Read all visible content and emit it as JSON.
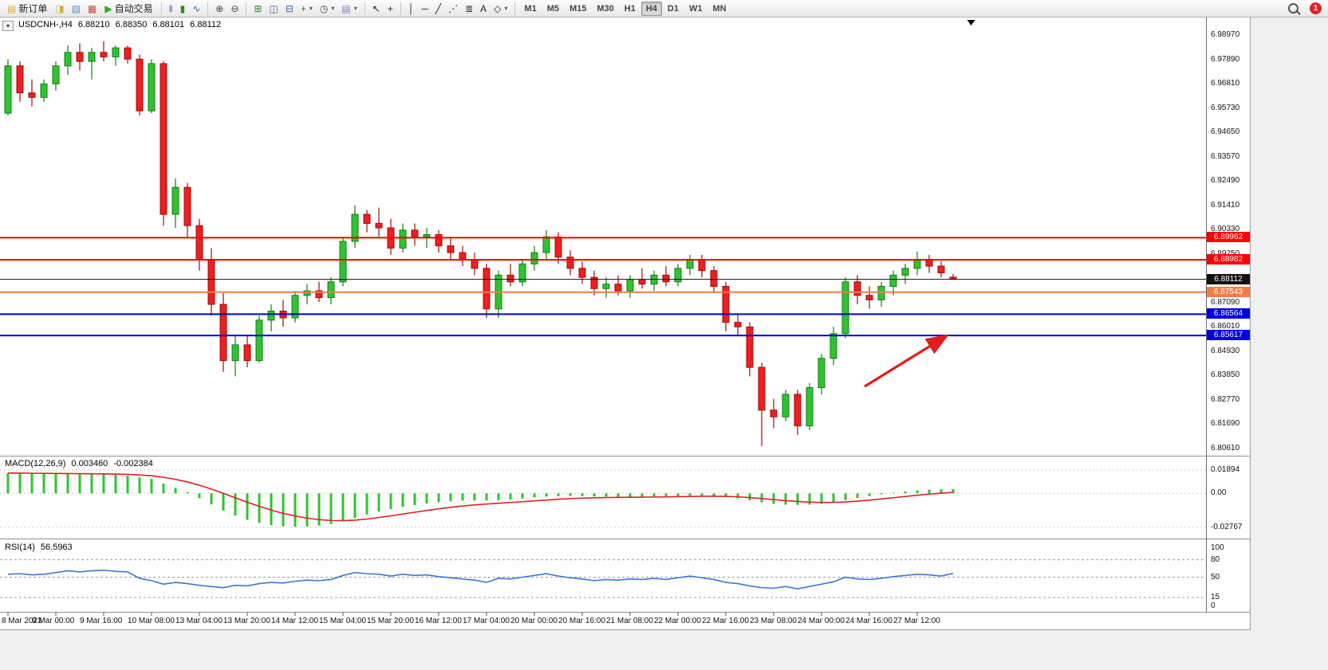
{
  "toolbar": {
    "timeframes": [
      "M1",
      "M5",
      "M15",
      "M30",
      "H1",
      "H4",
      "D1",
      "W1",
      "MN"
    ],
    "active_timeframe": "H4",
    "notification_count": "1",
    "sections": [
      {
        "type": "button",
        "name": "new-order-button",
        "icon_name": "new-order-icon",
        "glyph": "▤",
        "glyph_color": "#d8aa3c",
        "label": "新订单"
      },
      {
        "type": "icons",
        "items": [
          {
            "name": "charts-icon",
            "glyph": "◨",
            "color": "#d8aa3c"
          },
          {
            "name": "profiles-icon",
            "glyph": "▧",
            "color": "#5d8fc6"
          },
          {
            "name": "market-watch-icon",
            "glyph": "▦",
            "color": "#c05050"
          }
        ]
      },
      {
        "type": "button",
        "name": "auto-trading-button",
        "icon_name": "auto-trading-icon",
        "glyph": "▶",
        "glyph_color": "#28a828",
        "label": "自动交易"
      },
      {
        "type": "sep"
      },
      {
        "type": "icons",
        "items": [
          {
            "name": "bar-chart-icon",
            "glyph": "‖",
            "color": "#44659c"
          },
          {
            "name": "candlestick-chart-icon",
            "glyph": "▮",
            "color": "#2f8a2f"
          },
          {
            "name": "line-chart-icon",
            "glyph": "∿",
            "color": "#44659c"
          }
        ]
      },
      {
        "type": "sep"
      },
      {
        "type": "icons",
        "items": [
          {
            "name": "zoom-in-icon",
            "glyph": "⊕",
            "color": "#444444"
          },
          {
            "name": "zoom-out-icon",
            "glyph": "⊖",
            "color": "#444444"
          }
        ]
      },
      {
        "type": "sep"
      },
      {
        "type": "icons",
        "items": [
          {
            "name": "tile-windows-icon",
            "glyph": "⊞",
            "color": "#2f8a2f"
          },
          {
            "name": "arrange-windows-icon",
            "glyph": "◫",
            "color": "#44659c"
          },
          {
            "name": "cascade-windows-icon",
            "glyph": "⊟",
            "color": "#44659c"
          },
          {
            "name": "add-indicator-icon",
            "glyph": "+",
            "color": "#2f8a2f",
            "caret": true
          },
          {
            "name": "period-icon",
            "glyph": "◷",
            "color": "#444444",
            "caret": true
          },
          {
            "name": "template-icon",
            "glyph": "▤",
            "color": "#8a7ab0",
            "caret": true
          }
        ]
      },
      {
        "type": "sep"
      },
      {
        "type": "icons",
        "items": [
          {
            "name": "cursor-icon",
            "glyph": "↖",
            "color": "#222222"
          },
          {
            "name": "crosshair-icon",
            "glyph": "+",
            "color": "#222222"
          }
        ]
      },
      {
        "type": "sep"
      },
      {
        "type": "icons",
        "items": [
          {
            "name": "vertical-line-icon",
            "glyph": "│",
            "color": "#222222"
          },
          {
            "name": "horizontal-line-icon",
            "glyph": "─",
            "color": "#222222"
          },
          {
            "name": "trendline-icon",
            "glyph": "╱",
            "color": "#222222"
          },
          {
            "name": "equidistant-channel-icon",
            "glyph": "⋰",
            "color": "#222222"
          },
          {
            "name": "fibonacci-icon",
            "glyph": "≣",
            "color": "#222222"
          },
          {
            "name": "text-label-icon",
            "glyph": "A",
            "color": "#222222"
          },
          {
            "name": "arrows-shapes-icon",
            "glyph": "◇",
            "color": "#222222",
            "caret": true
          }
        ]
      },
      {
        "type": "sep"
      },
      {
        "type": "timeframes"
      },
      {
        "type": "spacer"
      },
      {
        "type": "search"
      },
      {
        "type": "badge"
      }
    ]
  },
  "header": {
    "symbol_period": "USDCNH-,H4",
    "open": "6.88210",
    "high": "6.88350",
    "low": "6.88101",
    "close": "6.88112"
  },
  "indicators_text": {
    "macd_label": "MACD(12,26,9)",
    "macd_value1": "0.003460",
    "macd_value2": "-0.002384",
    "rsi_label": "RSI(14)",
    "rsi_value": "56.5963"
  },
  "one_click_glyph": "▾",
  "chart_data": {
    "type": "candlestick",
    "symbol": "USDCNH-",
    "timeframe": "H4",
    "ohlc_current": {
      "open": 6.8821,
      "high": 6.8835,
      "low": 6.88101,
      "close": 6.88112
    },
    "ylim": [
      6.8061,
      6.9897
    ],
    "y_ticks": [
      "6.98970",
      "6.97890",
      "6.96810",
      "6.95730",
      "6.94650",
      "6.93570",
      "6.92490",
      "6.91410",
      "6.90330",
      "6.89250",
      "6.88170",
      "6.87090",
      "6.86010",
      "6.84930",
      "6.83850",
      "6.82770",
      "6.81690",
      "6.80610"
    ],
    "x_labels": [
      "8 Mar 2023",
      "9 Mar 00:00",
      "9 Mar 16:00",
      "10 Mar 08:00",
      "13 Mar 04:00",
      "13 Mar 20:00",
      "14 Mar 12:00",
      "15 Mar 04:00",
      "15 Mar 20:00",
      "16 Mar 12:00",
      "17 Mar 04:00",
      "20 Mar 00:00",
      "20 Mar 16:00",
      "21 Mar 08:00",
      "22 Mar 00:00",
      "22 Mar 16:00",
      "23 Mar 08:00",
      "24 Mar 00:00",
      "24 Mar 16:00",
      "27 Mar 12:00"
    ],
    "x_label_step": 4,
    "candles": [
      [
        6.955,
        6.979,
        6.954,
        6.976
      ],
      [
        6.976,
        6.978,
        6.96,
        6.964
      ],
      [
        6.964,
        6.97,
        6.958,
        6.962
      ],
      [
        6.962,
        6.97,
        6.96,
        6.968
      ],
      [
        6.968,
        6.978,
        6.965,
        6.976
      ],
      [
        6.976,
        6.985,
        6.972,
        6.982
      ],
      [
        6.982,
        6.986,
        6.974,
        6.978
      ],
      [
        6.978,
        6.984,
        6.97,
        6.982
      ],
      [
        6.982,
        6.987,
        6.978,
        6.98
      ],
      [
        6.98,
        6.985,
        6.976,
        6.984
      ],
      [
        6.984,
        6.985,
        6.977,
        6.979
      ],
      [
        6.979,
        6.981,
        6.954,
        6.956
      ],
      [
        6.956,
        6.979,
        6.955,
        6.977
      ],
      [
        6.977,
        6.978,
        6.905,
        6.91
      ],
      [
        6.91,
        6.926,
        6.904,
        6.922
      ],
      [
        6.922,
        6.924,
        6.9,
        6.905
      ],
      [
        6.905,
        6.908,
        6.885,
        6.89
      ],
      [
        6.89,
        6.895,
        6.865,
        6.87
      ],
      [
        6.87,
        6.875,
        6.84,
        6.845
      ],
      [
        6.845,
        6.856,
        6.838,
        6.852
      ],
      [
        6.852,
        6.856,
        6.842,
        6.845
      ],
      [
        6.845,
        6.865,
        6.844,
        6.863
      ],
      [
        6.863,
        6.87,
        6.858,
        6.867
      ],
      [
        6.867,
        6.872,
        6.86,
        6.864
      ],
      [
        6.864,
        6.876,
        6.862,
        6.874
      ],
      [
        6.874,
        6.879,
        6.87,
        6.876
      ],
      [
        6.876,
        6.88,
        6.871,
        6.873
      ],
      [
        6.873,
        6.882,
        6.87,
        6.88
      ],
      [
        6.88,
        6.9,
        6.878,
        6.898
      ],
      [
        6.898,
        6.914,
        6.895,
        6.91
      ],
      [
        6.91,
        6.912,
        6.902,
        6.906
      ],
      [
        6.906,
        6.913,
        6.9,
        6.904
      ],
      [
        6.904,
        6.908,
        6.892,
        6.895
      ],
      [
        6.895,
        6.906,
        6.893,
        6.903
      ],
      [
        6.903,
        6.906,
        6.896,
        6.9
      ],
      [
        6.9,
        6.904,
        6.895,
        6.901
      ],
      [
        6.901,
        6.903,
        6.893,
        6.896
      ],
      [
        6.896,
        6.9,
        6.89,
        6.893
      ],
      [
        6.893,
        6.896,
        6.887,
        6.89
      ],
      [
        6.89,
        6.893,
        6.883,
        6.886
      ],
      [
        6.886,
        6.888,
        6.864,
        6.868
      ],
      [
        6.868,
        6.885,
        6.864,
        6.883
      ],
      [
        6.883,
        6.888,
        6.878,
        6.88
      ],
      [
        6.88,
        6.89,
        6.878,
        6.888
      ],
      [
        6.888,
        6.896,
        6.885,
        6.893
      ],
      [
        6.893,
        6.903,
        6.89,
        6.9
      ],
      [
        6.9,
        6.902,
        6.888,
        6.891
      ],
      [
        6.891,
        6.894,
        6.883,
        6.886
      ],
      [
        6.886,
        6.889,
        6.879,
        6.882
      ],
      [
        6.882,
        6.885,
        6.874,
        6.877
      ],
      [
        6.877,
        6.882,
        6.873,
        6.879
      ],
      [
        6.879,
        6.883,
        6.874,
        6.876
      ],
      [
        6.876,
        6.883,
        6.873,
        6.881
      ],
      [
        6.881,
        6.886,
        6.877,
        6.879
      ],
      [
        6.879,
        6.885,
        6.876,
        6.883
      ],
      [
        6.883,
        6.887,
        6.878,
        6.88
      ],
      [
        6.88,
        6.888,
        6.878,
        6.886
      ],
      [
        6.886,
        6.892,
        6.883,
        6.89
      ],
      [
        6.89,
        6.892,
        6.882,
        6.885
      ],
      [
        6.885,
        6.887,
        6.875,
        6.878
      ],
      [
        6.878,
        6.88,
        6.858,
        6.862
      ],
      [
        6.862,
        6.866,
        6.856,
        6.86
      ],
      [
        6.86,
        6.862,
        6.838,
        6.842
      ],
      [
        6.842,
        6.844,
        6.807,
        6.823
      ],
      [
        6.823,
        6.828,
        6.815,
        6.82
      ],
      [
        6.82,
        6.832,
        6.818,
        6.83
      ],
      [
        6.83,
        6.832,
        6.812,
        6.816
      ],
      [
        6.816,
        6.835,
        6.814,
        6.833
      ],
      [
        6.833,
        6.848,
        6.83,
        6.846
      ],
      [
        6.846,
        6.86,
        6.843,
        6.857
      ],
      [
        6.857,
        6.882,
        6.855,
        6.88
      ],
      [
        6.88,
        6.883,
        6.87,
        6.874
      ],
      [
        6.874,
        6.878,
        6.868,
        6.872
      ],
      [
        6.872,
        6.88,
        6.869,
        6.878
      ],
      [
        6.878,
        6.885,
        6.874,
        6.883
      ],
      [
        6.883,
        6.888,
        6.879,
        6.886
      ],
      [
        6.886,
        6.8935,
        6.883,
        6.89
      ],
      [
        6.89,
        6.892,
        6.884,
        6.887
      ],
      [
        6.887,
        6.889,
        6.882,
        6.884
      ],
      [
        6.8821,
        6.8835,
        6.881,
        6.88112
      ]
    ],
    "horizontal_lines": [
      {
        "price": 6.89962,
        "label": "6.89962",
        "color": "#ff0000",
        "width": 2
      },
      {
        "price": 6.88982,
        "label": "6.88982",
        "color": "#ff0000",
        "width": 2
      },
      {
        "price": 6.88112,
        "label": "6.88112",
        "color": "#111111",
        "width": 1
      },
      {
        "price": 6.87543,
        "label": "6.87543",
        "color": "#ef7d45",
        "width": 2
      },
      {
        "price": 6.86564,
        "label": "6.86564",
        "color": "#0000e0",
        "width": 2
      },
      {
        "price": 6.85617,
        "label": "6.85617",
        "color": "#0000e0",
        "width": 2
      }
    ],
    "indicators": [
      {
        "type": "bar",
        "name": "MACD(12,26,9)",
        "display_values": "0.003460 -0.002384",
        "bar_color": "#2fc42f",
        "line_color": "#e02020",
        "y_ticks": [
          "0.01894",
          "0.00",
          "-0.02767"
        ],
        "values": [
          0.0165,
          0.0162,
          0.016,
          0.0158,
          0.0157,
          0.0158,
          0.0157,
          0.0156,
          0.0154,
          0.015,
          0.0144,
          0.013,
          0.0118,
          0.008,
          0.0045,
          0.001,
          -0.004,
          -0.009,
          -0.014,
          -0.018,
          -0.0215,
          -0.024,
          -0.0258,
          -0.0268,
          -0.0272,
          -0.027,
          -0.0262,
          -0.025,
          -0.0228,
          -0.02,
          -0.0172,
          -0.0148,
          -0.0128,
          -0.011,
          -0.0095,
          -0.0082,
          -0.0072,
          -0.0065,
          -0.006,
          -0.0058,
          -0.0058,
          -0.0056,
          -0.005,
          -0.0042,
          -0.0034,
          -0.0027,
          -0.0023,
          -0.0022,
          -0.0023,
          -0.0025,
          -0.0027,
          -0.0028,
          -0.0028,
          -0.0027,
          -0.0025,
          -0.0023,
          -0.0021,
          -0.0019,
          -0.0019,
          -0.0022,
          -0.003,
          -0.0042,
          -0.0058,
          -0.0074,
          -0.0086,
          -0.0092,
          -0.0094,
          -0.0092,
          -0.0085,
          -0.0072,
          -0.0055,
          -0.0038,
          -0.0022,
          -0.0008,
          0.0005,
          0.0016,
          0.0024,
          0.003,
          0.0033,
          0.00346
        ]
      },
      {
        "type": "line",
        "name": "RSI(14)",
        "display_value": "56.5963",
        "line_color": "#3b78d8",
        "levels": [
          80,
          50,
          15
        ],
        "y_ticks": [
          "100",
          "80",
          "50",
          "15",
          "0"
        ],
        "values": [
          55,
          56,
          54,
          55,
          58,
          61,
          59,
          61,
          62,
          60,
          59,
          48,
          44,
          38,
          41,
          39,
          36,
          34,
          32,
          36,
          35,
          39,
          41,
          40,
          43,
          45,
          44,
          46,
          53,
          58,
          56,
          55,
          52,
          55,
          53,
          54,
          51,
          49,
          47,
          45,
          41,
          48,
          47,
          50,
          53,
          56,
          52,
          49,
          47,
          44,
          46,
          45,
          47,
          46,
          48,
          46,
          49,
          52,
          49,
          46,
          41,
          39,
          35,
          32,
          31,
          34,
          30,
          34,
          38,
          42,
          50,
          47,
          46,
          48,
          51,
          53,
          55,
          54,
          52,
          56.5963
        ]
      }
    ],
    "annotations": [
      {
        "type": "arrow",
        "from": {
          "bar": 71.6,
          "price": 6.8335
        },
        "to": {
          "bar": 78.3,
          "price": 6.8555
        },
        "color": "#e41b1b"
      }
    ],
    "shift_marker_bar": 80.5,
    "colors": {
      "up": "#2fc42f",
      "up_stroke": "#157a15",
      "down": "#f01f1f",
      "down_stroke": "#980e0e",
      "background": "#ffffff"
    }
  }
}
